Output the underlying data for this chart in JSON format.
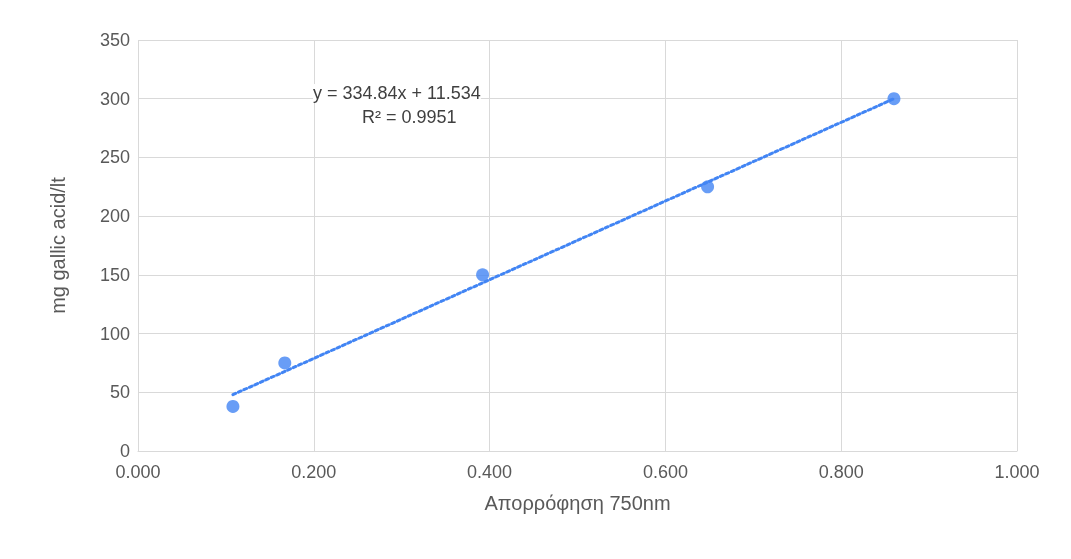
{
  "chart_data": {
    "type": "scatter",
    "xlabel": "Απορρόφηση 750nm",
    "ylabel": "mg gallic acid/lt",
    "annotations": [
      "y = 334.84x + 11.534",
      "R² = 0.9951"
    ],
    "series": [
      {
        "color": "#4285f4",
        "x": [
          0.108,
          0.167,
          0.392,
          0.648,
          0.86
        ],
        "values": [
          38,
          75,
          150,
          225,
          300
        ],
        "marker": "circle"
      },
      {
        "type": "line",
        "color": "#4285f4",
        "x": [
          0.108,
          0.86
        ],
        "values": [
          48,
          300
        ],
        "line_style": "dotted",
        "marker": "none"
      }
    ],
    "xlim": [
      0,
      1
    ],
    "xticks": [
      {
        "value": 0,
        "label": "0.000"
      },
      {
        "value": 0.2,
        "label": "0.200"
      },
      {
        "value": 0.4,
        "label": "0.400"
      },
      {
        "value": 0.6,
        "label": "0.600"
      },
      {
        "value": 0.8,
        "label": "0.800"
      },
      {
        "value": 1,
        "label": "1.000"
      }
    ],
    "ylim": [
      0,
      350
    ],
    "yticks": [
      0,
      50,
      100,
      150,
      200,
      250,
      300,
      350
    ],
    "grid": true
  }
}
